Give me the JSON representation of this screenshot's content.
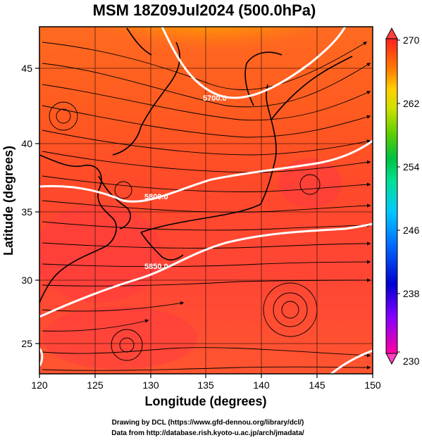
{
  "title": "MSM 18Z09Jul2024 (500.0hPa)",
  "xlabel": "Longitude (degrees)",
  "ylabel": "Latitude  (degrees)",
  "x_ticks": [
    "120",
    "125",
    "130",
    "135",
    "140",
    "145",
    "150"
  ],
  "y_ticks": [
    "25",
    "30",
    "35",
    "40",
    "45"
  ],
  "colorbar": {
    "min": 230,
    "max": 270,
    "labels": [
      "270",
      "262",
      "254",
      "246",
      "238",
      "230"
    ],
    "colors": [
      "#ff0090",
      "#a000ff",
      "#0000e0",
      "#0070ff",
      "#00c0ff",
      "#00e0a0",
      "#00c040",
      "#40d000",
      "#b0e000",
      "#ffe000",
      "#ff9000",
      "#ff5000",
      "#ff3030"
    ]
  },
  "contours": [
    {
      "label": "5700.0",
      "lat_at_136": 44.0
    },
    {
      "label": "5800.0",
      "lat_at_132": 37.0
    },
    {
      "label": "5850.0",
      "lat_at_130": 31.0
    }
  ],
  "credits": {
    "line1": "Drawing by DCL (https://www.gfd-dennou.org/library/dcl/)",
    "line2": "Data from http://database.rish.kyoto-u.ac.jp/arch/jmadata/"
  }
}
